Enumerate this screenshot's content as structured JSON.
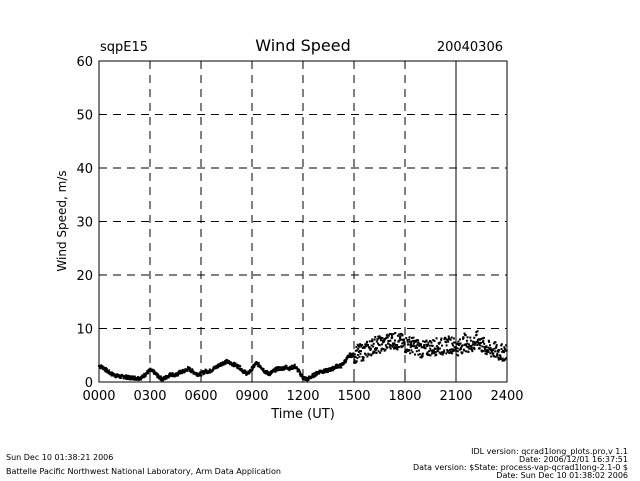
{
  "header": {
    "site": "sqpE15",
    "date": "20040306"
  },
  "chart_data": {
    "type": "scatter",
    "title": "Wind Speed",
    "xlabel": "Time (UT)",
    "ylabel": "Wind Speed, m/s",
    "xlim": [
      0,
      24
    ],
    "ylim": [
      0,
      60
    ],
    "x_ticks": [
      0,
      3,
      6,
      9,
      12,
      15,
      18,
      21,
      24
    ],
    "x_tick_labels": [
      "0000",
      "0300",
      "0600",
      "0900",
      "1200",
      "1500",
      "1800",
      "2100",
      "2400"
    ],
    "y_ticks": [
      0,
      10,
      20,
      30,
      40,
      50,
      60
    ],
    "y_tick_labels": [
      "0",
      "10",
      "20",
      "30",
      "40",
      "50",
      "60"
    ],
    "grid": true,
    "series": [
      {
        "name": "wind speed",
        "x": [
          0.0,
          0.25,
          0.5,
          0.75,
          1.0,
          1.25,
          1.5,
          1.75,
          2.0,
          2.25,
          2.5,
          2.75,
          3.0,
          3.25,
          3.5,
          3.75,
          4.0,
          4.25,
          4.5,
          4.75,
          5.0,
          5.25,
          5.5,
          5.75,
          6.0,
          6.25,
          6.5,
          6.75,
          7.0,
          7.25,
          7.5,
          7.75,
          8.0,
          8.25,
          8.5,
          8.75,
          9.0,
          9.25,
          9.5,
          9.75,
          10.0,
          10.25,
          10.5,
          10.75,
          11.0,
          11.25,
          11.5,
          11.75,
          12.0,
          12.25,
          12.5,
          12.75,
          13.0,
          13.25,
          13.5,
          13.75,
          14.0,
          14.25,
          14.5,
          14.75,
          15.0,
          15.25,
          15.5,
          15.75,
          16.0,
          16.25,
          16.5,
          16.75,
          17.0,
          17.25,
          17.5,
          17.75,
          18.0,
          18.25,
          18.5,
          18.75,
          19.0,
          19.25,
          19.5,
          19.75,
          20.0,
          20.25,
          20.5,
          20.75,
          21.0,
          21.25,
          21.5,
          21.75,
          22.0,
          22.25,
          22.5,
          22.75,
          23.0,
          23.25,
          23.5,
          23.75,
          24.0
        ],
        "y": [
          3.0,
          2.7,
          2.0,
          1.5,
          1.2,
          1.0,
          1.0,
          0.8,
          0.8,
          0.7,
          0.8,
          1.5,
          2.2,
          1.8,
          1.0,
          0.5,
          1.0,
          1.5,
          1.2,
          1.8,
          2.0,
          2.5,
          2.0,
          1.5,
          1.5,
          2.0,
          2.0,
          2.5,
          3.0,
          3.5,
          3.8,
          3.5,
          3.2,
          2.8,
          2.0,
          1.5,
          2.5,
          3.5,
          3.0,
          2.0,
          1.5,
          2.0,
          2.5,
          2.5,
          2.8,
          2.5,
          3.0,
          2.0,
          0.8,
          0.5,
          1.0,
          1.5,
          2.0,
          2.0,
          2.2,
          2.5,
          3.0,
          3.0,
          4.0,
          5.0,
          5.0,
          5.5,
          5.5,
          6.0,
          6.5,
          7.0,
          7.0,
          7.0,
          7.5,
          8.0,
          7.5,
          7.5,
          7.0,
          7.0,
          6.8,
          6.5,
          6.0,
          6.2,
          6.5,
          6.5,
          6.8,
          6.5,
          7.0,
          7.0,
          6.5,
          6.5,
          7.5,
          7.0,
          7.0,
          8.0,
          7.0,
          6.5,
          6.0,
          6.0,
          5.5,
          5.5,
          5.5
        ]
      }
    ]
  },
  "footer": {
    "timestamp": "Sun Dec 10 01:38:21 2006",
    "lab": "Battelle Pacific Northwest National Laboratory, Arm Data Application",
    "idl_version": "IDL version: qcrad1long_plots.pro,v 1.1",
    "date_line": "Date: 2006/12/01 16:37:51",
    "data_version": "Data version: $State: process-vap-qcrad1long-2.1-0 $",
    "date_line2": "Date: Sun Dec 10 01:38:02 2006"
  }
}
